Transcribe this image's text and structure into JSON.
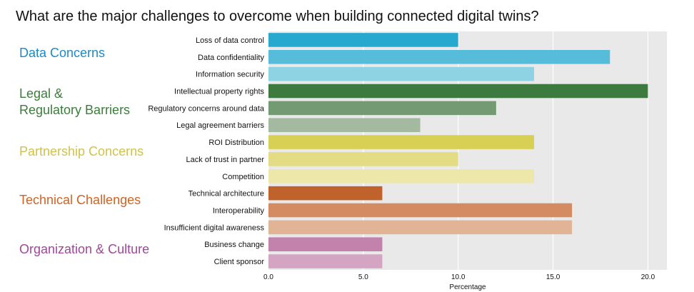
{
  "title": "What are the major challenges to overcome when building connected digital twins?",
  "groups": [
    {
      "label": "Data Concerns",
      "color": "#1d8ac4"
    },
    {
      "label": "Legal &\nRegulatory Barriers",
      "color": "#3b7d3b"
    },
    {
      "label": "Partnership Concerns",
      "color": "#d1c24a"
    },
    {
      "label": "Technical Challenges",
      "color": "#cf6425"
    },
    {
      "label": "Organization &  Culture",
      "color": "#a0479a"
    }
  ],
  "chart_data": {
    "type": "bar",
    "orientation": "horizontal",
    "categories": [
      "Loss of data control",
      "Data confidentiality",
      "Information security",
      "Intellectual property rights",
      "Regulatory concerns around data",
      "Legal agreement barriers",
      "ROI Distribution",
      "Lack of trust in partner",
      "Competition",
      "Technical architecture",
      "Interoperability",
      "Insufficient digital awareness",
      "Business change",
      "Client sponsor"
    ],
    "values": [
      10,
      18,
      14,
      20,
      12,
      8,
      14,
      10,
      14,
      6,
      16,
      16,
      6,
      6
    ],
    "bar_colors": [
      "#27a9cf",
      "#57bcd9",
      "#8ed3e4",
      "#3d7a3f",
      "#739a72",
      "#a3b9a0",
      "#d8d054",
      "#e3dc84",
      "#ede8aa",
      "#bf622b",
      "#d58b62",
      "#e2b496",
      "#c382ac",
      "#d3a5c2"
    ],
    "xlabel": "Percentage",
    "ylabel": "",
    "xlim": [
      0,
      21
    ],
    "xticks": [
      0.0,
      5.0,
      10.0,
      15.0,
      20.0
    ],
    "xtick_labels": [
      "0.0",
      "5.0",
      "10.0",
      "15.0",
      "20.0"
    ],
    "grid": true,
    "background": "#e9e9e9",
    "grid_color": "#ffffff"
  }
}
